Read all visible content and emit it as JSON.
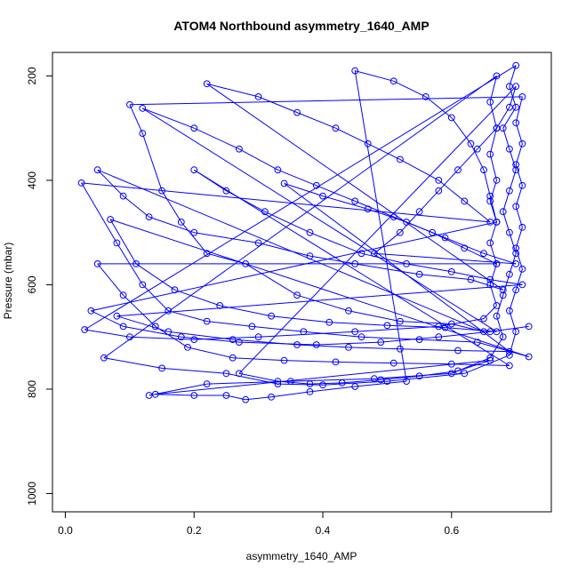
{
  "chart_data": {
    "type": "scatter",
    "title": "ATOM4 Northbound asymmetry_1640_AMP",
    "xlabel": "asymmetry_1640_AMP",
    "ylabel": "Pressure (mbar)",
    "xlim": [
      -0.02,
      0.755
    ],
    "ylim": [
      1035,
      155
    ],
    "y_inverted": true,
    "x_ticks": [
      0.0,
      0.2,
      0.4,
      0.6
    ],
    "x_tick_labels": [
      "0.0",
      "0.2",
      "0.4",
      "0.6"
    ],
    "y_ticks": [
      200,
      400,
      600,
      800,
      1000
    ],
    "y_tick_labels": [
      "200",
      "400",
      "600",
      "800",
      "1000"
    ],
    "series_color": "#0000ff",
    "marker": "open-circle",
    "connected": true,
    "legend": "none",
    "grid": false,
    "series": [
      {
        "values_note": "",
        "points": [
          [
            0.13,
            812
          ],
          [
            0.22,
            790
          ],
          [
            0.35,
            785
          ],
          [
            0.48,
            780
          ],
          [
            0.6,
            770
          ],
          [
            0.66,
            740
          ],
          [
            0.68,
            700
          ],
          [
            0.67,
            660
          ],
          [
            0.68,
            620
          ],
          [
            0.69,
            580
          ],
          [
            0.7,
            540
          ],
          [
            0.69,
            500
          ],
          [
            0.68,
            460
          ],
          [
            0.69,
            420
          ],
          [
            0.7,
            380
          ],
          [
            0.69,
            340
          ],
          [
            0.68,
            300
          ],
          [
            0.7,
            260
          ],
          [
            0.69,
            220
          ],
          [
            0.7,
            180
          ],
          [
            0.03,
            686
          ],
          [
            0.1,
            700
          ],
          [
            0.2,
            705
          ],
          [
            0.3,
            700
          ],
          [
            0.45,
            690
          ],
          [
            0.58,
            680
          ],
          [
            0.65,
            665
          ],
          [
            0.67,
            640
          ],
          [
            0.66,
            600
          ],
          [
            0.67,
            560
          ],
          [
            0.66,
            520
          ],
          [
            0.67,
            480
          ],
          [
            0.66,
            440
          ],
          [
            0.67,
            400
          ],
          [
            0.66,
            350
          ],
          [
            0.67,
            300
          ],
          [
            0.66,
            250
          ],
          [
            0.67,
            200
          ],
          [
            0.06,
            740
          ],
          [
            0.15,
            760
          ],
          [
            0.25,
            770
          ],
          [
            0.33,
            790
          ],
          [
            0.4,
            792
          ],
          [
            0.5,
            785
          ],
          [
            0.62,
            770
          ],
          [
            0.69,
            735
          ],
          [
            0.7,
            690
          ],
          [
            0.69,
            650
          ],
          [
            0.7,
            610
          ],
          [
            0.71,
            570
          ],
          [
            0.7,
            530
          ],
          [
            0.71,
            490
          ],
          [
            0.7,
            450
          ],
          [
            0.71,
            410
          ],
          [
            0.7,
            370
          ],
          [
            0.71,
            330
          ],
          [
            0.7,
            290
          ],
          [
            0.71,
            240
          ],
          [
            0.1,
            255
          ],
          [
            0.12,
            310
          ],
          [
            0.15,
            420
          ],
          [
            0.18,
            480
          ],
          [
            0.22,
            540
          ],
          [
            0.28,
            560
          ],
          [
            0.36,
            620
          ],
          [
            0.44,
            650
          ],
          [
            0.52,
            670
          ],
          [
            0.6,
            675
          ],
          [
            0.65,
            690
          ],
          [
            0.05,
            380
          ],
          [
            0.09,
            430
          ],
          [
            0.13,
            470
          ],
          [
            0.2,
            500
          ],
          [
            0.3,
            520
          ],
          [
            0.38,
            545
          ],
          [
            0.45,
            560
          ],
          [
            0.55,
            580
          ],
          [
            0.63,
            590
          ],
          [
            0.68,
            610
          ],
          [
            0.22,
            215
          ],
          [
            0.3,
            240
          ],
          [
            0.36,
            270
          ],
          [
            0.42,
            300
          ],
          [
            0.47,
            330
          ],
          [
            0.52,
            360
          ],
          [
            0.58,
            400
          ],
          [
            0.62,
            440
          ],
          [
            0.66,
            480
          ],
          [
            0.025,
            405
          ],
          [
            0.08,
            520
          ],
          [
            0.12,
            600
          ],
          [
            0.16,
            650
          ],
          [
            0.22,
            670
          ],
          [
            0.29,
            680
          ],
          [
            0.37,
            690
          ],
          [
            0.46,
            700
          ],
          [
            0.55,
            705
          ],
          [
            0.64,
            710
          ],
          [
            0.72,
            738
          ],
          [
            0.07,
            475
          ],
          [
            0.11,
            560
          ],
          [
            0.17,
            610
          ],
          [
            0.24,
            640
          ],
          [
            0.32,
            660
          ],
          [
            0.41,
            672
          ],
          [
            0.5,
            678
          ],
          [
            0.59,
            682
          ],
          [
            0.67,
            690
          ],
          [
            0.12,
            262
          ],
          [
            0.2,
            300
          ],
          [
            0.27,
            340
          ],
          [
            0.33,
            380
          ],
          [
            0.39,
            410
          ],
          [
            0.45,
            440
          ],
          [
            0.51,
            470
          ],
          [
            0.57,
            500
          ],
          [
            0.62,
            530
          ],
          [
            0.67,
            560
          ],
          [
            0.05,
            560
          ],
          [
            0.09,
            620
          ],
          [
            0.14,
            680
          ],
          [
            0.19,
            720
          ],
          [
            0.26,
            740
          ],
          [
            0.34,
            745
          ],
          [
            0.42,
            748
          ],
          [
            0.51,
            750
          ],
          [
            0.6,
            752
          ],
          [
            0.69,
            755
          ],
          [
            0.2,
            380
          ],
          [
            0.25,
            420
          ],
          [
            0.31,
            460
          ],
          [
            0.38,
            500
          ],
          [
            0.46,
            540
          ],
          [
            0.53,
            560
          ],
          [
            0.6,
            575
          ],
          [
            0.66,
            590
          ],
          [
            0.71,
            600
          ],
          [
            0.08,
            660
          ],
          [
            0.16,
            690
          ],
          [
            0.26,
            705
          ],
          [
            0.36,
            715
          ],
          [
            0.44,
            720
          ],
          [
            0.52,
            723
          ],
          [
            0.61,
            726
          ],
          [
            0.69,
            728
          ],
          [
            0.34,
            406
          ],
          [
            0.4,
            430
          ],
          [
            0.47,
            455
          ],
          [
            0.53,
            480
          ],
          [
            0.59,
            510
          ],
          [
            0.65,
            540
          ],
          [
            0.7,
            560
          ],
          [
            0.48,
            540
          ],
          [
            0.52,
            500
          ],
          [
            0.55,
            460
          ],
          [
            0.58,
            420
          ],
          [
            0.61,
            380
          ],
          [
            0.64,
            340
          ],
          [
            0.67,
            300
          ],
          [
            0.69,
            260
          ],
          [
            0.7,
            220
          ],
          [
            0.27,
            770
          ],
          [
            0.33,
            785
          ],
          [
            0.38,
            790
          ],
          [
            0.43,
            788
          ],
          [
            0.49,
            782
          ],
          [
            0.55,
            775
          ],
          [
            0.61,
            765
          ],
          [
            0.66,
            745
          ],
          [
            0.14,
            810
          ],
          [
            0.2,
            812
          ],
          [
            0.25,
            812
          ],
          [
            0.28,
            820
          ],
          [
            0.32,
            815
          ],
          [
            0.38,
            805
          ],
          [
            0.45,
            795
          ],
          [
            0.53,
            785
          ],
          [
            0.45,
            190
          ],
          [
            0.51,
            210
          ],
          [
            0.56,
            240
          ],
          [
            0.6,
            280
          ],
          [
            0.63,
            330
          ],
          [
            0.65,
            380
          ],
          [
            0.66,
            430
          ],
          [
            0.67,
            480
          ],
          [
            0.04,
            650
          ],
          [
            0.09,
            680
          ],
          [
            0.18,
            700
          ],
          [
            0.27,
            710
          ],
          [
            0.39,
            715
          ],
          [
            0.49,
            710
          ],
          [
            0.58,
            700
          ],
          [
            0.66,
            690
          ],
          [
            0.72,
            680
          ]
        ]
      }
    ]
  }
}
